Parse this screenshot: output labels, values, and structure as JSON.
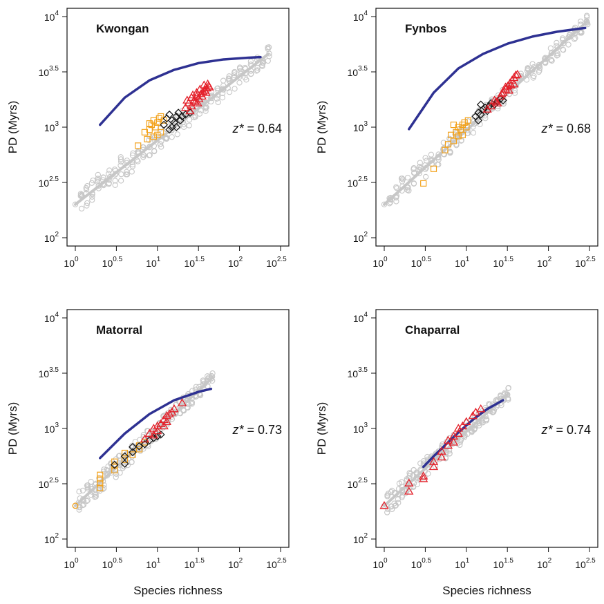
{
  "colors": {
    "null_points": "#c7c7c7",
    "expected_curve": "#2e3192",
    "orange": "#f3a21b",
    "black": "#111111",
    "red": "#e4202a"
  },
  "chart_data": [
    {
      "type": "scatter",
      "title": "Kwongan",
      "xlabel": "",
      "ylabel": "PD (Myrs)",
      "x_scale": "log10",
      "y_scale": "log10",
      "xlim": [
        1,
        316.2
      ],
      "ylim": [
        100,
        10000
      ],
      "x_ticks": [
        {
          "base": "10",
          "exp": "0"
        },
        {
          "base": "10",
          "exp": "0.5"
        },
        {
          "base": "10",
          "exp": "1"
        },
        {
          "base": "10",
          "exp": "1.5"
        },
        {
          "base": "10",
          "exp": "2"
        },
        {
          "base": "10",
          "exp": "2.5"
        }
      ],
      "y_ticks": [
        {
          "base": "10",
          "exp": "2"
        },
        {
          "base": "10",
          "exp": "2.5"
        },
        {
          "base": "10",
          "exp": "3"
        },
        {
          "base": "10",
          "exp": "3.5"
        },
        {
          "base": "10",
          "exp": "4"
        }
      ],
      "annotation": {
        "var": "z*",
        "text": " = 0.64",
        "value": 0.64
      },
      "null_range": {
        "x_start": 1,
        "x_end": 225,
        "y_start": 200,
        "y_end": 4600,
        "spread": 0.12
      },
      "expected_curve": [
        [
          2,
          1050
        ],
        [
          4,
          1850
        ],
        [
          8,
          2650
        ],
        [
          16,
          3300
        ],
        [
          32,
          3800
        ],
        [
          64,
          4100
        ],
        [
          128,
          4250
        ],
        [
          180,
          4300
        ]
      ],
      "series": [
        {
          "marker": "square",
          "color": "orange",
          "points": [
            [
              5.8,
              680
            ],
            [
              7,
              900
            ],
            [
              8,
              950
            ],
            [
              8.5,
              1050
            ],
            [
              9,
              1150
            ],
            [
              9.5,
              1000
            ],
            [
              10,
              1100
            ],
            [
              10.5,
              1200
            ],
            [
              11,
              1250
            ],
            [
              12,
              1150
            ],
            [
              9,
              820
            ],
            [
              10,
              850
            ],
            [
              11,
              900
            ],
            [
              7.5,
              780
            ],
            [
              8,
              1080
            ]
          ]
        },
        {
          "marker": "diamond",
          "color": "black",
          "points": [
            [
              12,
              1050
            ],
            [
              13,
              1200
            ],
            [
              14,
              1300
            ],
            [
              15,
              1150
            ],
            [
              16,
              1100
            ],
            [
              17,
              1250
            ],
            [
              18,
              1350
            ],
            [
              20,
              1250
            ],
            [
              22,
              1300
            ],
            [
              25,
              1350
            ],
            [
              14,
              950
            ],
            [
              15,
              1000
            ],
            [
              17,
              1000
            ],
            [
              19,
              1150
            ]
          ]
        },
        {
          "marker": "triangle",
          "color": "red",
          "points": [
            [
              22,
              1500
            ],
            [
              24,
              1650
            ],
            [
              26,
              1550
            ],
            [
              28,
              1750
            ],
            [
              30,
              1900
            ],
            [
              32,
              1800
            ],
            [
              34,
              2000
            ],
            [
              36,
              2100
            ],
            [
              38,
              2150
            ],
            [
              40,
              2250
            ],
            [
              42,
              2350
            ],
            [
              27,
              1950
            ],
            [
              29,
              1700
            ],
            [
              31,
              1650
            ],
            [
              33,
              2200
            ],
            [
              35,
              1900
            ],
            [
              25,
              1400
            ],
            [
              23,
              1750
            ],
            [
              26,
              1850
            ],
            [
              37,
              2400
            ],
            [
              39,
              2050
            ],
            [
              41,
              2450
            ],
            [
              30,
              2050
            ],
            [
              43,
              2300
            ]
          ]
        }
      ]
    },
    {
      "type": "scatter",
      "title": "Fynbos",
      "xlabel": "",
      "ylabel": "PD (Myrs)",
      "x_scale": "log10",
      "y_scale": "log10",
      "xlim": [
        1,
        316.2
      ],
      "ylim": [
        100,
        10000
      ],
      "x_ticks": [
        {
          "base": "10",
          "exp": "0"
        },
        {
          "base": "10",
          "exp": "0.5"
        },
        {
          "base": "10",
          "exp": "1"
        },
        {
          "base": "10",
          "exp": "1.5"
        },
        {
          "base": "10",
          "exp": "2"
        },
        {
          "base": "10",
          "exp": "2.5"
        }
      ],
      "y_ticks": [
        {
          "base": "10",
          "exp": "2"
        },
        {
          "base": "10",
          "exp": "2.5"
        },
        {
          "base": "10",
          "exp": "3"
        },
        {
          "base": "10",
          "exp": "3.5"
        },
        {
          "base": "10",
          "exp": "4"
        }
      ],
      "annotation": {
        "var": "z*",
        "text": " = 0.68",
        "value": 0.68
      },
      "null_range": {
        "x_start": 1,
        "x_end": 295,
        "y_start": 200,
        "y_end": 9000,
        "spread": 0.1
      },
      "expected_curve": [
        [
          2,
          960
        ],
        [
          4,
          2050
        ],
        [
          8,
          3400
        ],
        [
          16,
          4600
        ],
        [
          32,
          5700
        ],
        [
          64,
          6600
        ],
        [
          128,
          7300
        ],
        [
          280,
          7900
        ]
      ],
      "series": [
        {
          "marker": "square",
          "color": "orange",
          "points": [
            [
              3,
              310
            ],
            [
              4,
              420
            ],
            [
              5.5,
              620
            ],
            [
              6,
              700
            ],
            [
              6.5,
              850
            ],
            [
              7,
              750
            ],
            [
              7.5,
              900
            ],
            [
              8,
              1000
            ],
            [
              8.5,
              950
            ],
            [
              9,
              1050
            ],
            [
              9.5,
              1100
            ],
            [
              10,
              1000
            ],
            [
              10.5,
              1150
            ],
            [
              7,
              1050
            ],
            [
              8,
              830
            ],
            [
              9,
              850
            ]
          ]
        },
        {
          "marker": "diamond",
          "color": "black",
          "points": [
            [
              13,
              1250
            ],
            [
              14,
              1350
            ],
            [
              15,
              1300
            ],
            [
              16,
              1450
            ],
            [
              17,
              1500
            ],
            [
              18,
              1400
            ],
            [
              19,
              1550
            ],
            [
              20,
              1650
            ],
            [
              22,
              1600
            ],
            [
              24,
              1700
            ],
            [
              26,
              1800
            ],
            [
              28,
              1750
            ],
            [
              15,
              1600
            ],
            [
              14,
              1150
            ]
          ]
        },
        {
          "marker": "triangle",
          "color": "red",
          "points": [
            [
              18,
              1450
            ],
            [
              20,
              1550
            ],
            [
              22,
              1750
            ],
            [
              24,
              1650
            ],
            [
              26,
              1900
            ],
            [
              28,
              2050
            ],
            [
              30,
              2200
            ],
            [
              32,
              2350
            ],
            [
              34,
              2500
            ],
            [
              36,
              2650
            ],
            [
              38,
              2800
            ],
            [
              40,
              2950
            ],
            [
              42,
              3000
            ],
            [
              30,
              2300
            ],
            [
              35,
              2400
            ],
            [
              38,
              2450
            ],
            [
              33,
              2150
            ],
            [
              27,
              2000
            ],
            [
              23,
              1700
            ]
          ]
        }
      ]
    },
    {
      "type": "scatter",
      "title": "Matorral",
      "xlabel": "Species richness",
      "ylabel": "PD (Myrs)",
      "x_scale": "log10",
      "y_scale": "log10",
      "xlim": [
        1,
        316.2
      ],
      "ylim": [
        100,
        10000
      ],
      "x_ticks": [
        {
          "base": "10",
          "exp": "0"
        },
        {
          "base": "10",
          "exp": "0.5"
        },
        {
          "base": "10",
          "exp": "1"
        },
        {
          "base": "10",
          "exp": "1.5"
        },
        {
          "base": "10",
          "exp": "2"
        },
        {
          "base": "10",
          "exp": "2.5"
        }
      ],
      "y_ticks": [
        {
          "base": "10",
          "exp": "2"
        },
        {
          "base": "10",
          "exp": "2.5"
        },
        {
          "base": "10",
          "exp": "3"
        },
        {
          "base": "10",
          "exp": "3.5"
        },
        {
          "base": "10",
          "exp": "4"
        }
      ],
      "annotation": {
        "var": "z*",
        "text": " = 0.73",
        "value": 0.73
      },
      "null_range": {
        "x_start": 1,
        "x_end": 46,
        "y_start": 200,
        "y_end": 2850,
        "spread": 0.1
      },
      "expected_curve": [
        [
          2,
          540
        ],
        [
          4,
          900
        ],
        [
          8,
          1350
        ],
        [
          16,
          1800
        ],
        [
          32,
          2150
        ],
        [
          45,
          2280
        ]
      ],
      "series": [
        {
          "marker": "circle",
          "color": "orange",
          "points": [
            [
              1,
              200
            ]
          ]
        },
        {
          "marker": "square",
          "color": "orange",
          "points": [
            [
              2,
              290
            ],
            [
              2,
              320
            ],
            [
              2,
              350
            ],
            [
              2,
              380
            ],
            [
              3,
              420
            ],
            [
              3,
              460
            ],
            [
              3,
              500
            ],
            [
              4,
              520
            ],
            [
              4,
              600
            ],
            [
              5,
              580
            ],
            [
              6,
              650
            ],
            [
              6,
              700
            ],
            [
              7,
              750
            ]
          ]
        },
        {
          "marker": "diamond",
          "color": "black",
          "points": [
            [
              3,
              470
            ],
            [
              4,
              480
            ],
            [
              4,
              560
            ],
            [
              5,
              610
            ],
            [
              5,
              680
            ],
            [
              6,
              690
            ],
            [
              7,
              720
            ],
            [
              8,
              780
            ],
            [
              9,
              820
            ],
            [
              10,
              850
            ],
            [
              11,
              880
            ]
          ]
        },
        {
          "marker": "triangle",
          "color": "red",
          "points": [
            [
              7,
              800
            ],
            [
              8,
              900
            ],
            [
              9,
              1000
            ],
            [
              10,
              950
            ],
            [
              11,
              1100
            ],
            [
              12,
              1200
            ],
            [
              13,
              1300
            ],
            [
              14,
              1350
            ],
            [
              15,
              1400
            ],
            [
              16,
              1500
            ],
            [
              20,
              1700
            ],
            [
              9,
              870
            ],
            [
              10,
              1050
            ],
            [
              12,
              1050
            ],
            [
              13,
              1150
            ]
          ]
        }
      ]
    },
    {
      "type": "scatter",
      "title": "Chaparral",
      "xlabel": "Species richness",
      "ylabel": "PD (Myrs)",
      "x_scale": "log10",
      "y_scale": "log10",
      "xlim": [
        1,
        316.2
      ],
      "ylim": [
        100,
        10000
      ],
      "x_ticks": [
        {
          "base": "10",
          "exp": "0"
        },
        {
          "base": "10",
          "exp": "0.5"
        },
        {
          "base": "10",
          "exp": "1"
        },
        {
          "base": "10",
          "exp": "1.5"
        },
        {
          "base": "10",
          "exp": "2"
        },
        {
          "base": "10",
          "exp": "2.5"
        }
      ],
      "y_ticks": [
        {
          "base": "10",
          "exp": "2"
        },
        {
          "base": "10",
          "exp": "2.5"
        },
        {
          "base": "10",
          "exp": "3"
        },
        {
          "base": "10",
          "exp": "3.5"
        },
        {
          "base": "10",
          "exp": "4"
        }
      ],
      "annotation": {
        "var": "z*",
        "text": " = 0.74",
        "value": 0.74
      },
      "null_range": {
        "x_start": 1,
        "x_end": 32,
        "y_start": 200,
        "y_end": 2050,
        "spread": 0.1
      },
      "expected_curve": [
        [
          3,
          450
        ],
        [
          4,
          560
        ],
        [
          6,
          750
        ],
        [
          8,
          920
        ],
        [
          12,
          1200
        ],
        [
          18,
          1500
        ],
        [
          28,
          1800
        ]
      ],
      "series": [
        {
          "marker": "triangle",
          "color": "red",
          "points": [
            [
              1,
              200
            ],
            [
              2,
              270
            ],
            [
              2,
              320
            ],
            [
              3,
              350
            ],
            [
              3,
              370
            ],
            [
              4,
              450
            ],
            [
              4,
              500
            ],
            [
              5,
              550
            ],
            [
              5,
              620
            ],
            [
              6,
              700
            ],
            [
              6,
              780
            ],
            [
              7,
              750
            ],
            [
              7,
              850
            ],
            [
              8,
              900
            ],
            [
              8,
              1000
            ],
            [
              9,
              1050
            ],
            [
              10,
              1150
            ],
            [
              12,
              1300
            ],
            [
              13,
              1400
            ],
            [
              15,
              1500
            ]
          ]
        }
      ]
    }
  ]
}
